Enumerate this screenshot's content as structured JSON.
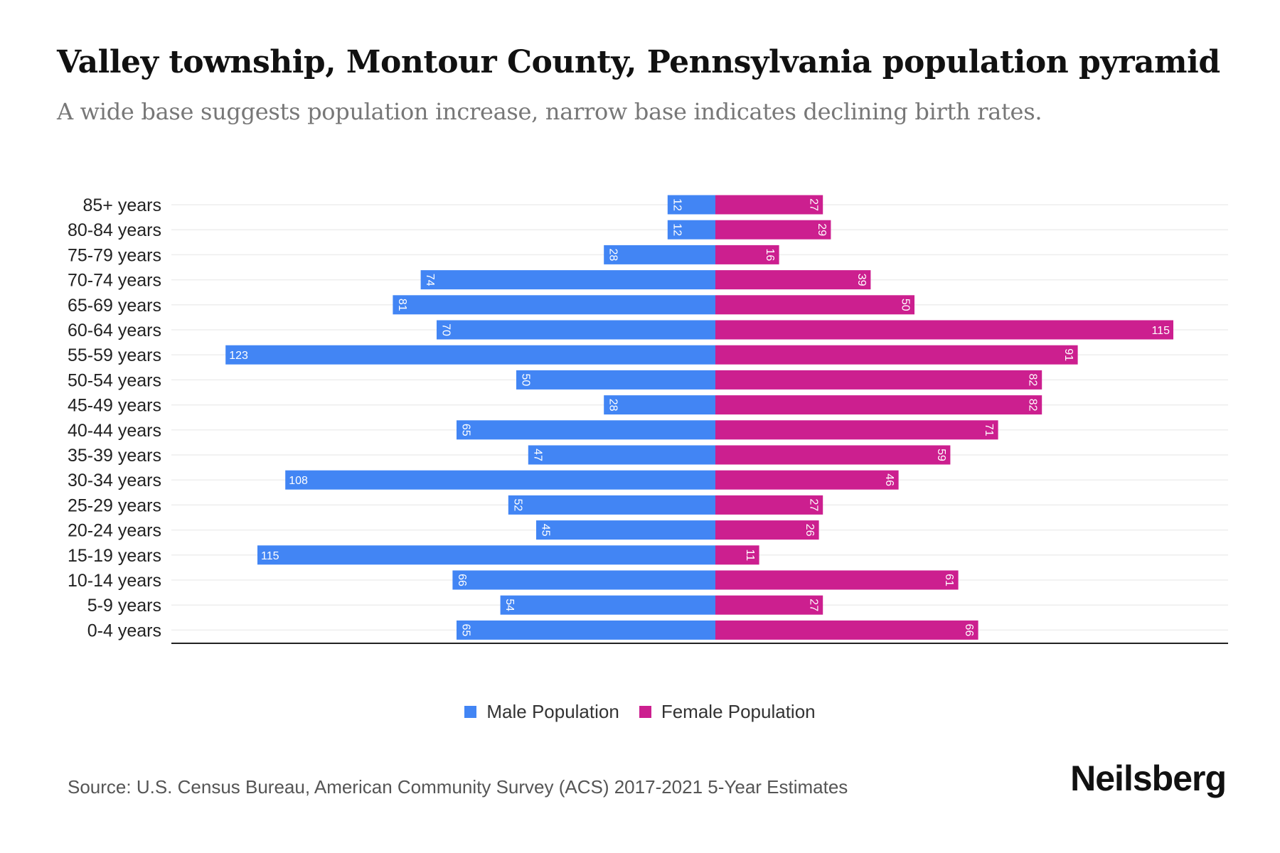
{
  "title": "Valley township, Montour County, Pennsylvania population pyramid",
  "subtitle": "A wide base suggests population increase, narrow base indicates declining birth rates.",
  "source": "Source: U.S. Census Bureau, American Community Survey (ACS) 2017-2021 5-Year Estimates",
  "logo": "Neilsberg",
  "colors": {
    "male": "#4285F4",
    "female": "#CC1F8F"
  },
  "chart_data": {
    "type": "bar",
    "orientation": "horizontal-pyramid",
    "categories": [
      "85+ years",
      "80-84 years",
      "75-79 years",
      "70-74 years",
      "65-69 years",
      "60-64 years",
      "55-59 years",
      "50-54 years",
      "45-49 years",
      "40-44 years",
      "35-39 years",
      "30-34 years",
      "25-29 years",
      "20-24 years",
      "15-19 years",
      "10-14 years",
      "5-9 years",
      "0-4 years"
    ],
    "series": [
      {
        "name": "Male Population",
        "values": [
          12,
          12,
          28,
          74,
          81,
          70,
          123,
          50,
          28,
          65,
          47,
          108,
          52,
          45,
          115,
          66,
          54,
          65
        ]
      },
      {
        "name": "Female Population",
        "values": [
          27,
          29,
          16,
          39,
          50,
          115,
          91,
          82,
          82,
          71,
          59,
          46,
          27,
          26,
          11,
          61,
          27,
          66
        ]
      }
    ],
    "legend": "bottom-center",
    "grid": true
  }
}
